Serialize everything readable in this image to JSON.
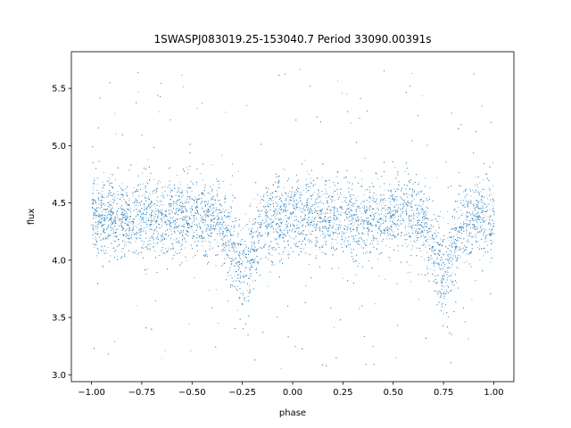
{
  "chart_data": {
    "type": "scatter",
    "title": "1SWASPJ083019.25-153040.7 Period 33090.00391s",
    "xlabel": "phase",
    "ylabel": "flux",
    "xlim": [
      -1.1,
      1.1
    ],
    "ylim": [
      2.94,
      5.82
    ],
    "xticks": [
      -1.0,
      -0.75,
      -0.5,
      -0.25,
      0.0,
      0.25,
      0.5,
      0.75,
      1.0
    ],
    "xtick_labels": [
      "−1.00",
      "−0.75",
      "−0.50",
      "−0.25",
      "0.00",
      "0.25",
      "0.50",
      "0.75",
      "1.00"
    ],
    "yticks": [
      3.0,
      3.5,
      4.0,
      4.5,
      5.0,
      5.5
    ],
    "ytick_labels": [
      "3.0",
      "3.5",
      "4.0",
      "4.5",
      "5.0",
      "5.5"
    ],
    "grid": false,
    "marker_color": "#1f77b4",
    "series": [
      {
        "x_range": [
          -1.0,
          1.0
        ],
        "baseline_flux": 4.38,
        "scatter_sigma": 0.17,
        "dips": [
          {
            "phase": -0.25,
            "min_flux": 3.9
          },
          {
            "phase": 0.75,
            "min_flux": 3.9
          }
        ],
        "outlier_range": [
          3.05,
          5.7
        ]
      }
    ]
  }
}
